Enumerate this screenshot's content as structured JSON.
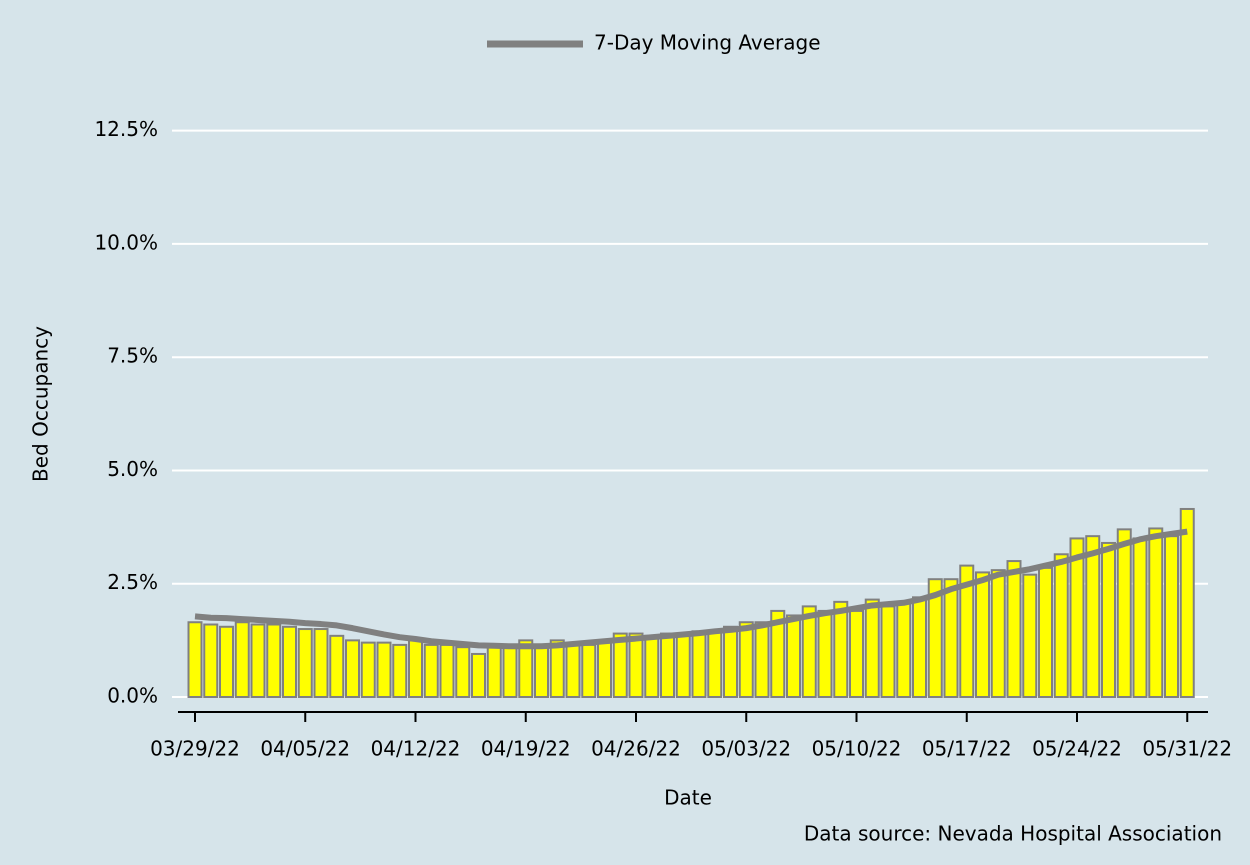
{
  "chart_data": {
    "type": "bar",
    "x_label": "Date",
    "y_label": "Bed Occupancy",
    "source": "Data source: Nevada Hospital Association",
    "categories": [
      "03/29/22",
      null,
      null,
      null,
      null,
      null,
      null,
      "04/05/22",
      null,
      null,
      null,
      null,
      null,
      null,
      "04/12/22",
      null,
      null,
      null,
      null,
      null,
      null,
      "04/19/22",
      null,
      null,
      null,
      null,
      null,
      null,
      "04/26/22",
      null,
      null,
      null,
      null,
      null,
      null,
      "05/03/22",
      null,
      null,
      null,
      null,
      null,
      null,
      "05/10/22",
      null,
      null,
      null,
      null,
      null,
      null,
      "05/17/22",
      null,
      null,
      null,
      null,
      null,
      null,
      "05/24/22",
      null,
      null,
      null,
      null,
      null,
      null,
      "05/31/22"
    ],
    "values": [
      1.65,
      1.6,
      1.55,
      1.65,
      1.6,
      1.6,
      1.55,
      1.5,
      1.5,
      1.35,
      1.25,
      1.2,
      1.2,
      1.15,
      1.25,
      1.15,
      1.15,
      1.1,
      0.95,
      1.1,
      1.1,
      1.25,
      1.1,
      1.25,
      1.15,
      1.15,
      1.2,
      1.4,
      1.4,
      1.35,
      1.4,
      1.35,
      1.45,
      1.45,
      1.55,
      1.65,
      1.65,
      1.9,
      1.8,
      2.0,
      1.9,
      2.1,
      1.9,
      2.15,
      2.0,
      2.1,
      2.2,
      2.6,
      2.6,
      2.9,
      2.75,
      2.8,
      3.0,
      2.7,
      2.85,
      3.15,
      3.5,
      3.55,
      3.4,
      3.7,
      3.5,
      3.72,
      3.55,
      4.15
    ],
    "color": "#ffff00",
    "bar_edge_color": "#808080",
    "line": {
      "name": "7-Day Moving Average",
      "color": "#808080",
      "values": [
        1.78,
        1.75,
        1.74,
        1.72,
        1.7,
        1.68,
        1.66,
        1.63,
        1.61,
        1.58,
        1.52,
        1.45,
        1.38,
        1.32,
        1.28,
        1.23,
        1.2,
        1.17,
        1.14,
        1.13,
        1.12,
        1.12,
        1.12,
        1.14,
        1.17,
        1.2,
        1.23,
        1.26,
        1.29,
        1.32,
        1.35,
        1.38,
        1.41,
        1.45,
        1.48,
        1.52,
        1.58,
        1.65,
        1.72,
        1.79,
        1.85,
        1.9,
        1.96,
        2.02,
        2.05,
        2.08,
        2.15,
        2.25,
        2.38,
        2.48,
        2.58,
        2.7,
        2.76,
        2.82,
        2.9,
        2.98,
        3.08,
        3.17,
        3.27,
        3.38,
        3.48,
        3.55,
        3.6,
        3.65
      ]
    },
    "ylim": [
      0,
      13
    ],
    "yticks": [
      {
        "value": 0,
        "label": "0.0%"
      },
      {
        "value": 2.5,
        "label": "2.5%"
      },
      {
        "value": 5,
        "label": "5.0%"
      },
      {
        "value": 7.5,
        "label": "7.5%"
      },
      {
        "value": 10,
        "label": "10.0%"
      },
      {
        "value": 12.5,
        "label": "12.5%"
      }
    ],
    "grid": true
  }
}
